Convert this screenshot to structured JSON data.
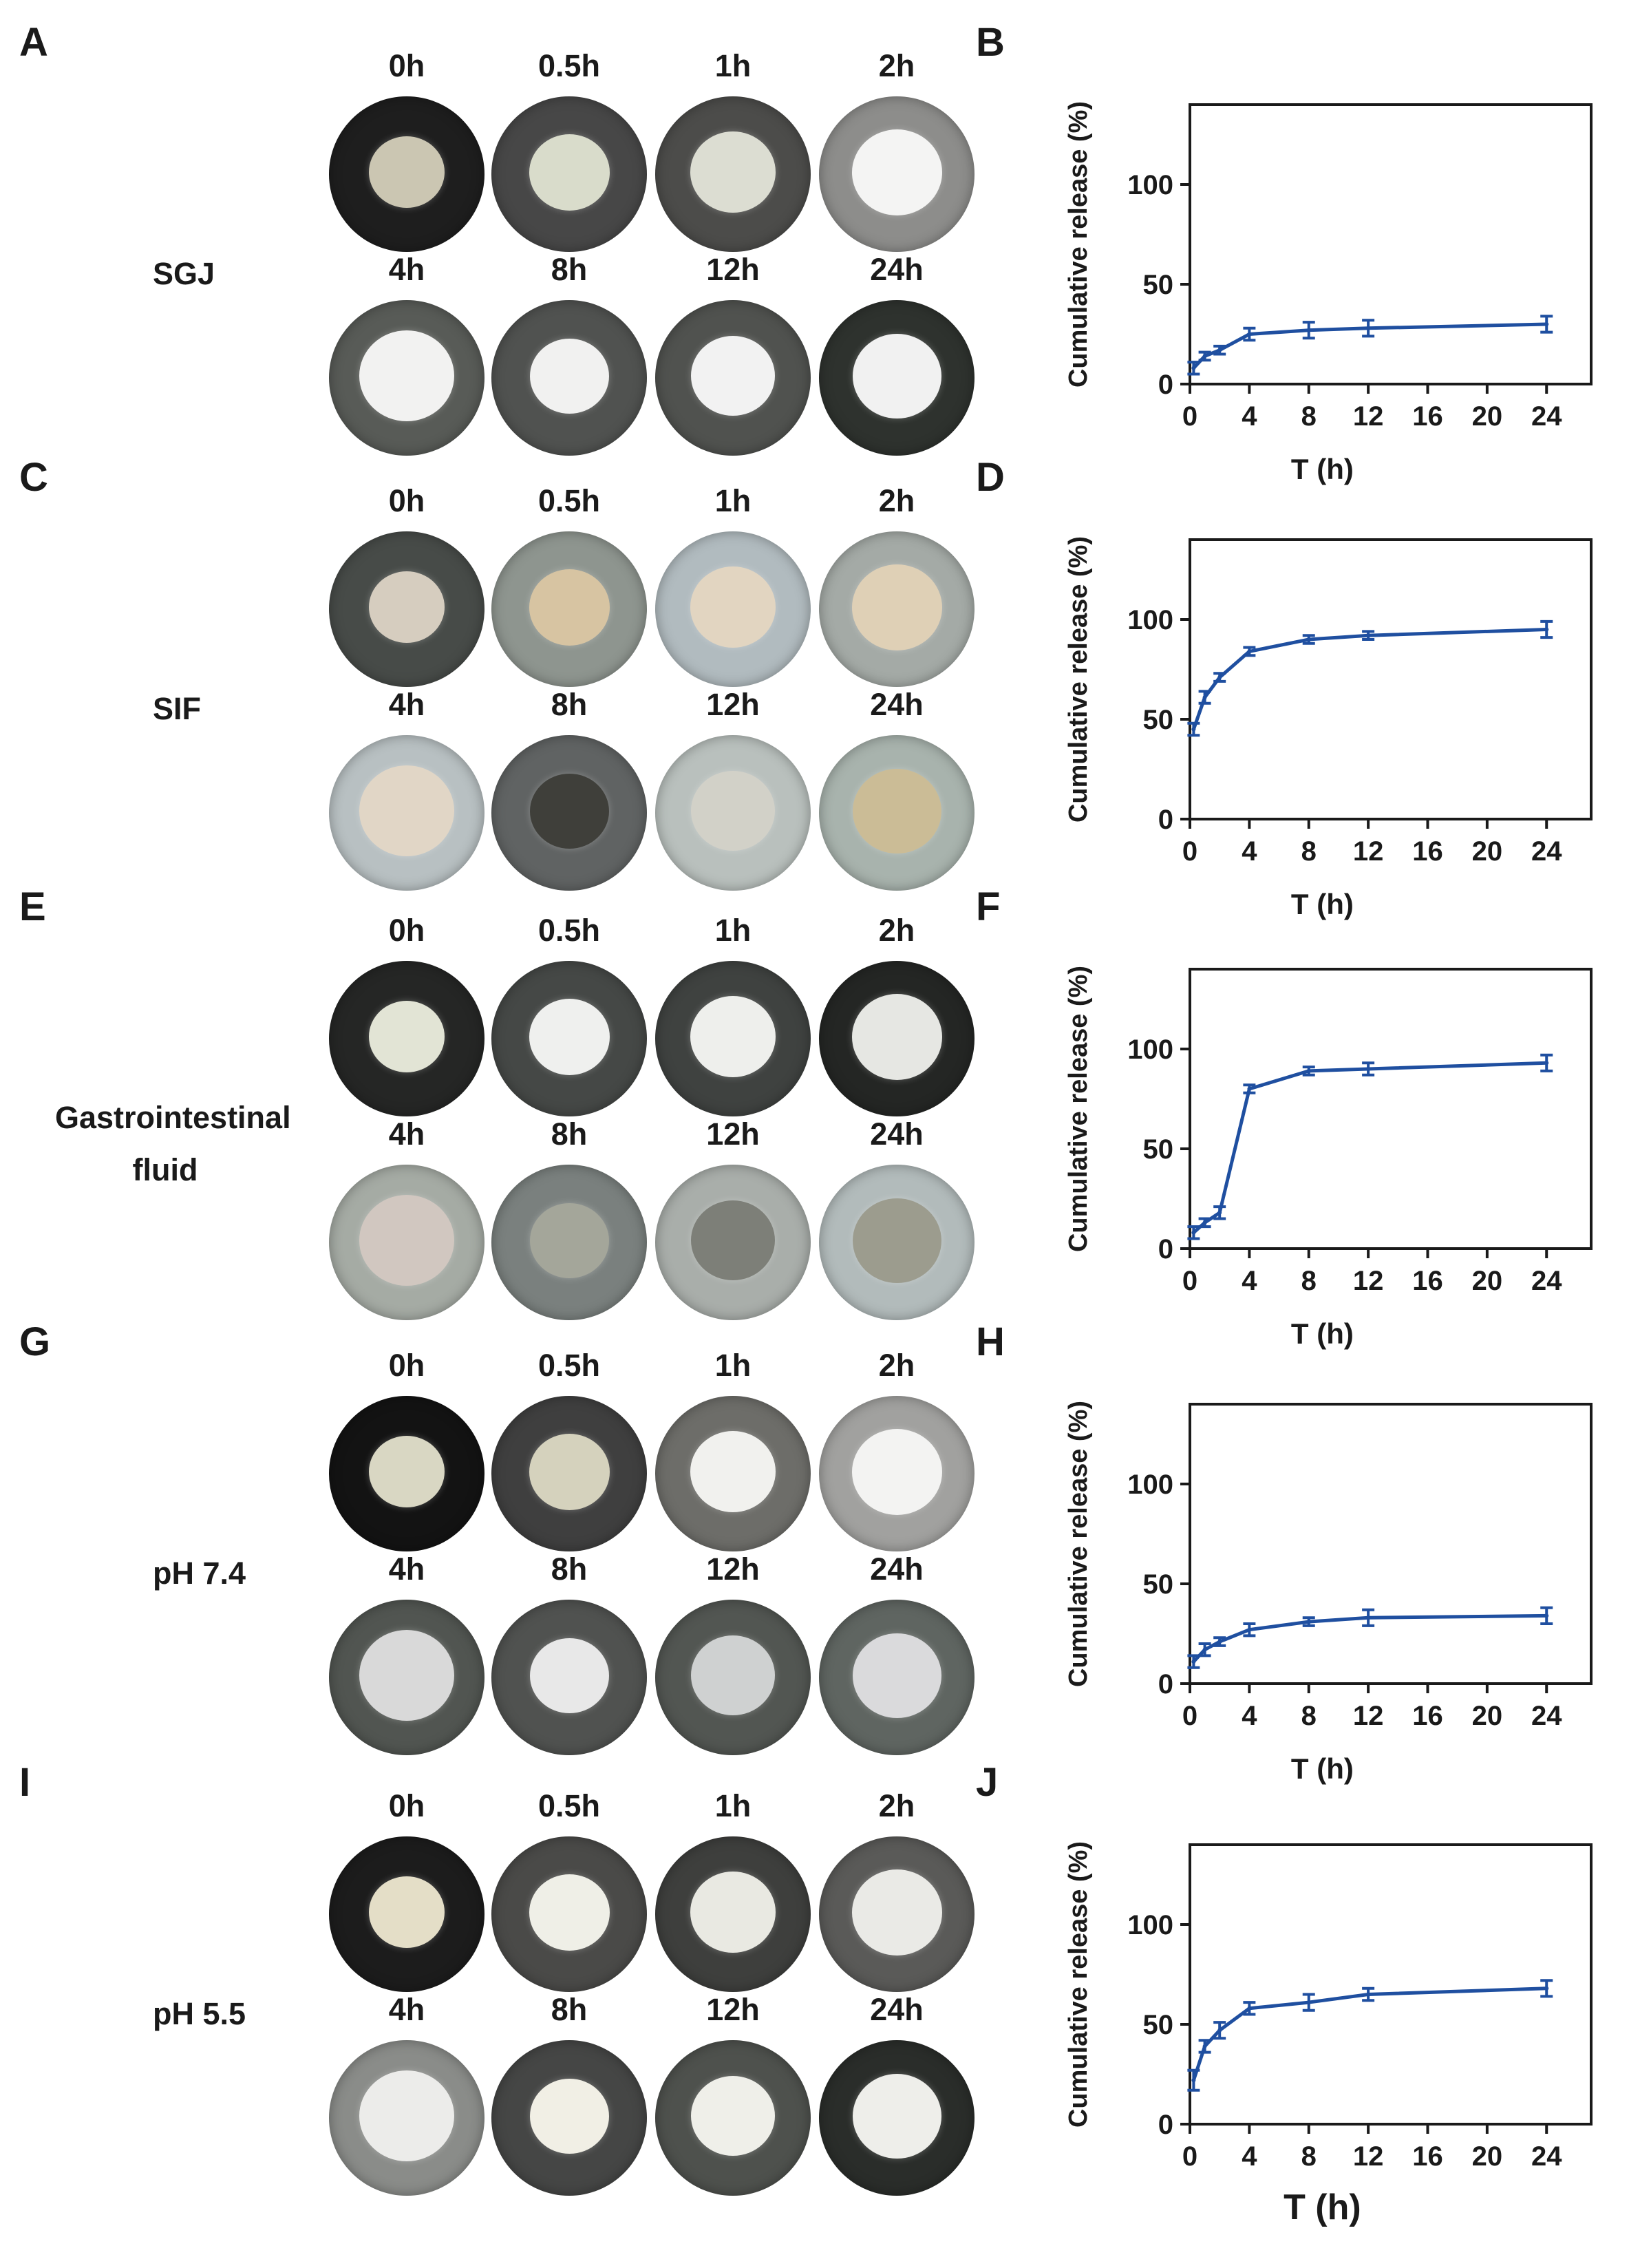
{
  "time_labels": [
    "0h",
    "0.5h",
    "1h",
    "2h",
    "4h",
    "8h",
    "12h",
    "24h"
  ],
  "groups": [
    {
      "photo_panel": "A",
      "chart_panel": "B",
      "condition": "SGJ",
      "dish_colors": [
        "#1e1e1e",
        "#474747",
        "#4c4c4a",
        "#8d8d8b",
        "#585b57",
        "#505250",
        "#50524f",
        "#2e322e"
      ],
      "sample_colors": [
        "#cbc6b2",
        "#d9dccb",
        "#dcddd2",
        "#f4f4f3",
        "#f2f2f1",
        "#f1f1f0",
        "#f2f2f2",
        "#f1f1f1"
      ]
    },
    {
      "photo_panel": "C",
      "chart_panel": "D",
      "condition": "SIF",
      "dish_colors": [
        "#474b48",
        "#8e958f",
        "#b1bbbf",
        "#a4aaa6",
        "#b8c0c2",
        "#606363",
        "#b9c0bd",
        "#a8b3ad"
      ],
      "sample_colors": [
        "#d6cdbf",
        "#d7c4a2",
        "#e2d5c1",
        "#dfd0b6",
        "#e1d6c6",
        "#3f3f3a",
        "#d2d1c8",
        "#cbbc96"
      ]
    },
    {
      "photo_panel": "E",
      "chart_panel": "F",
      "condition": "Gastrointestinal fluid",
      "dish_colors": [
        "#252625",
        "#454846",
        "#3f4240",
        "#242624",
        "#a5aba4",
        "#7a807e",
        "#a9aeaa",
        "#b2bbbb"
      ],
      "sample_colors": [
        "#e2e4d5",
        "#eff0ee",
        "#eeefec",
        "#e6e7e3",
        "#d1c7c0",
        "#a4a69a",
        "#7d7f78",
        "#9c9c8e"
      ]
    },
    {
      "photo_panel": "G",
      "chart_panel": "H",
      "condition": "pH 7.4",
      "dish_colors": [
        "#131313",
        "#3f3f3f",
        "#6d6d69",
        "#a1a19f",
        "#515551",
        "#505250",
        "#525652",
        "#5f6561"
      ],
      "sample_colors": [
        "#d9d7c3",
        "#d5d2bd",
        "#f1f1ee",
        "#f3f3f2",
        "#d9d9d9",
        "#e8e8e8",
        "#cfd1d1",
        "#dadadc"
      ]
    },
    {
      "photo_panel": "I",
      "chart_panel": "J",
      "condition": "pH 5.5",
      "dish_colors": [
        "#1c1c1c",
        "#4a4a48",
        "#3e3f3d",
        "#5a5a58",
        "#8a8c89",
        "#454645",
        "#4e514d",
        "#2a2d2a"
      ],
      "sample_colors": [
        "#e4dec7",
        "#efefe7",
        "#e9e9e2",
        "#eaeae6",
        "#ececea",
        "#f1efe5",
        "#efefe9",
        "#eeeeea"
      ]
    }
  ],
  "chart_data": [
    {
      "type": "line",
      "xlabel": "T (h)",
      "ylabel": "Cumulative release (%)",
      "xlim": [
        0,
        27
      ],
      "ylim": [
        0,
        140
      ],
      "xticks": [
        0,
        4,
        8,
        12,
        16,
        20,
        24
      ],
      "yticks": [
        0,
        50,
        100
      ],
      "x": [
        0.25,
        1,
        2,
        4,
        8,
        12,
        24
      ],
      "y": [
        8,
        14,
        17,
        25,
        27,
        28,
        30
      ],
      "error": [
        3,
        2,
        2,
        3,
        4,
        4,
        4
      ],
      "color": "#1f4fa0"
    },
    {
      "type": "line",
      "xlabel": "T (h)",
      "ylabel": "Cumulative release (%)",
      "xlim": [
        0,
        27
      ],
      "ylim": [
        0,
        140
      ],
      "xticks": [
        0,
        4,
        8,
        12,
        16,
        20,
        24
      ],
      "yticks": [
        0,
        50,
        100
      ],
      "x": [
        0.25,
        1,
        2,
        4,
        8,
        12,
        24
      ],
      "y": [
        45,
        61,
        71,
        84,
        90,
        92,
        95
      ],
      "error": [
        3,
        3,
        2,
        2,
        2,
        2,
        4
      ],
      "color": "#1f4fa0"
    },
    {
      "type": "line",
      "xlabel": "T (h)",
      "ylabel": "Cumulative release (%)",
      "xlim": [
        0,
        27
      ],
      "ylim": [
        0,
        140
      ],
      "xticks": [
        0,
        4,
        8,
        12,
        16,
        20,
        24
      ],
      "yticks": [
        0,
        50,
        100
      ],
      "x": [
        0.25,
        1,
        2,
        4,
        8,
        12,
        24
      ],
      "y": [
        8,
        13,
        18,
        80,
        89,
        90,
        93
      ],
      "error": [
        3,
        2,
        3,
        2,
        2,
        3,
        4
      ],
      "color": "#1f4fa0"
    },
    {
      "type": "line",
      "xlabel": "T (h)",
      "ylabel": "Cumulative release (%)",
      "xlim": [
        0,
        27
      ],
      "ylim": [
        0,
        140
      ],
      "xticks": [
        0,
        4,
        8,
        12,
        16,
        20,
        24
      ],
      "yticks": [
        0,
        50,
        100
      ],
      "x": [
        0.25,
        1,
        2,
        4,
        8,
        12,
        24
      ],
      "y": [
        11,
        17,
        21,
        27,
        31,
        33,
        34
      ],
      "error": [
        3,
        3,
        2,
        3,
        2,
        4,
        4
      ],
      "color": "#1f4fa0"
    },
    {
      "type": "line",
      "xlabel": "T (h)",
      "ylabel": "Cumulative release (%)",
      "xlim": [
        0,
        27
      ],
      "ylim": [
        0,
        140
      ],
      "xticks": [
        0,
        4,
        8,
        12,
        16,
        20,
        24
      ],
      "yticks": [
        0,
        50,
        100
      ],
      "x": [
        0.25,
        1,
        2,
        4,
        8,
        12,
        24
      ],
      "y": [
        22,
        39,
        47,
        58,
        61,
        65,
        68
      ],
      "error": [
        5,
        3,
        4,
        3,
        4,
        3,
        4
      ],
      "color": "#1f4fa0"
    }
  ]
}
